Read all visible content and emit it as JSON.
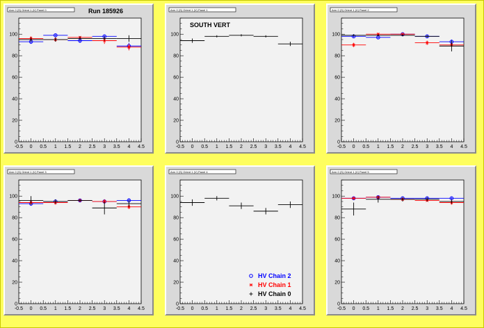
{
  "run_label": "Run 185926",
  "chart_data": [
    {
      "type": "scatter",
      "title": "Arm 0 (S) Orient 1 (V) Panel 0",
      "annotation": "Run 185926",
      "xlim": [
        -0.5,
        4.5
      ],
      "ylim": [
        0,
        115
      ],
      "x_ticks": [
        "-0.5",
        "0",
        "0.5",
        "1",
        "1.5",
        "2",
        "2.5",
        "3",
        "3.5",
        "4",
        "4.5"
      ],
      "y_ticks": [
        "0",
        "20",
        "40",
        "60",
        "80",
        "100"
      ],
      "series": [
        {
          "name": "HV Chain 2",
          "color": "#0000ff",
          "marker": "circle",
          "x": [
            0,
            1,
            2,
            3,
            4
          ],
          "values": [
            93,
            99,
            94,
            98,
            89
          ],
          "yerr": [
            2,
            1,
            2,
            1,
            3
          ]
        },
        {
          "name": "HV Chain 1",
          "color": "#ff0000",
          "marker": "star",
          "x": [
            0,
            1,
            2,
            3,
            4
          ],
          "values": [
            96,
            95,
            97,
            94,
            88
          ],
          "yerr": [
            2,
            2,
            1,
            3,
            3
          ]
        },
        {
          "name": "HV Chain 0",
          "color": "#000000",
          "marker": "plus",
          "x": [
            0,
            1,
            2,
            3,
            4
          ],
          "values": [
            95,
            95,
            96,
            96,
            96
          ],
          "yerr": [
            2,
            2,
            2,
            2,
            3
          ]
        }
      ]
    },
    {
      "type": "scatter",
      "title": "Arm 0 (S) Orient 1 (V) Panel 1",
      "annotation": "SOUTH VERT",
      "xlim": [
        -0.5,
        4.5
      ],
      "ylim": [
        0,
        115
      ],
      "x_ticks": [
        "-0.5",
        "0",
        "0.5",
        "1",
        "1.5",
        "2",
        "2.5",
        "3",
        "3.5",
        "4",
        "4.5"
      ],
      "y_ticks": [
        "0",
        "20",
        "40",
        "60",
        "80",
        "100"
      ],
      "series": [
        {
          "name": "HV Chain 0",
          "color": "#000000",
          "marker": "plus",
          "x": [
            0,
            1,
            2,
            3,
            4
          ],
          "values": [
            94,
            98,
            99,
            98,
            91
          ],
          "yerr": [
            2,
            1,
            1,
            1,
            2
          ]
        }
      ]
    },
    {
      "type": "scatter",
      "title": "Arm 0 (S) Orient 1 (V) Panel 2",
      "annotation": "",
      "xlim": [
        -0.5,
        4.5
      ],
      "ylim": [
        0,
        115
      ],
      "x_ticks": [
        "-0.5",
        "0",
        "0.5",
        "1",
        "1.5",
        "2",
        "2.5",
        "3",
        "3.5",
        "4",
        "4.5"
      ],
      "y_ticks": [
        "0",
        "20",
        "40",
        "60",
        "80",
        "100"
      ],
      "series": [
        {
          "name": "HV Chain 2",
          "color": "#0000ff",
          "marker": "circle",
          "x": [
            0,
            1,
            2,
            3,
            4
          ],
          "values": [
            98,
            97,
            100,
            98,
            93
          ],
          "yerr": [
            1,
            1,
            0.5,
            1,
            2
          ]
        },
        {
          "name": "HV Chain 1",
          "color": "#ff0000",
          "marker": "star",
          "x": [
            0,
            1,
            2,
            3,
            4
          ],
          "values": [
            90,
            100,
            100,
            92,
            90
          ],
          "yerr": [
            2,
            1,
            0.5,
            2,
            2
          ]
        },
        {
          "name": "HV Chain 0",
          "color": "#000000",
          "marker": "plus",
          "x": [
            0,
            1,
            2,
            3,
            4
          ],
          "values": [
            99,
            99,
            99,
            98,
            89
          ],
          "yerr": [
            1,
            1,
            1,
            1,
            5
          ]
        }
      ]
    },
    {
      "type": "scatter",
      "title": "Arm 0 (S) Orient 1 (V) Panel 3",
      "annotation": "",
      "xlim": [
        -0.5,
        4.5
      ],
      "ylim": [
        0,
        115
      ],
      "x_ticks": [
        "-0.5",
        "0",
        "0.5",
        "1",
        "1.5",
        "2",
        "2.5",
        "3",
        "3.5",
        "4",
        "4.5"
      ],
      "y_ticks": [
        "0",
        "20",
        "40",
        "60",
        "80",
        "100"
      ],
      "series": [
        {
          "name": "HV Chain 2",
          "color": "#0000ff",
          "marker": "circle",
          "x": [
            0,
            1,
            2,
            3,
            4
          ],
          "values": [
            93,
            95,
            96,
            95,
            96
          ],
          "yerr": [
            2,
            1,
            1,
            2,
            2
          ]
        },
        {
          "name": "HV Chain 1",
          "color": "#ff0000",
          "marker": "star",
          "x": [
            0,
            1,
            2,
            3,
            4
          ],
          "values": [
            94,
            94,
            96,
            95,
            90
          ],
          "yerr": [
            2,
            2,
            1,
            2,
            2
          ]
        },
        {
          "name": "HV Chain 0",
          "color": "#000000",
          "marker": "plus",
          "x": [
            0,
            1,
            2,
            3,
            4
          ],
          "values": [
            96,
            95,
            96,
            89,
            93
          ],
          "yerr": [
            4,
            2,
            1,
            6,
            3
          ]
        }
      ]
    },
    {
      "type": "scatter",
      "title": "Arm 0 (S) Orient 1 (V) Panel 4",
      "annotation": "",
      "xlim": [
        -0.5,
        4.5
      ],
      "ylim": [
        0,
        115
      ],
      "x_ticks": [
        "-0.5",
        "0",
        "0.5",
        "1",
        "1.5",
        "2",
        "2.5",
        "3",
        "3.5",
        "4",
        "4.5"
      ],
      "y_ticks": [
        "0",
        "20",
        "40",
        "60",
        "80",
        "100"
      ],
      "legend": [
        "HV Chain 2",
        "HV Chain 1",
        "HV Chain 0"
      ],
      "legend_colors": [
        "#0000ff",
        "#ff0000",
        "#000000"
      ],
      "legend_markers": [
        "circle",
        "star",
        "plus"
      ],
      "series": [
        {
          "name": "HV Chain 0",
          "color": "#000000",
          "marker": "plus",
          "x": [
            0,
            1,
            2,
            3,
            4
          ],
          "values": [
            94,
            98,
            91,
            86,
            92
          ],
          "yerr": [
            3,
            2,
            3,
            3,
            3
          ]
        }
      ]
    },
    {
      "type": "scatter",
      "title": "Arm 0 (S) Orient 1 (V) Panel 5",
      "annotation": "",
      "xlim": [
        -0.5,
        4.5
      ],
      "ylim": [
        0,
        115
      ],
      "x_ticks": [
        "-0.5",
        "0",
        "0.5",
        "1",
        "1.5",
        "2",
        "2.5",
        "3",
        "3.5",
        "4",
        "4.5"
      ],
      "y_ticks": [
        "0",
        "20",
        "40",
        "60",
        "80",
        "100"
      ],
      "series": [
        {
          "name": "HV Chain 2",
          "color": "#0000ff",
          "marker": "circle",
          "x": [
            0,
            1,
            2,
            3,
            4
          ],
          "values": [
            98,
            99,
            98,
            98,
            98
          ],
          "yerr": [
            1,
            1,
            1,
            1,
            1
          ]
        },
        {
          "name": "HV Chain 1",
          "color": "#ff0000",
          "marker": "star",
          "x": [
            0,
            1,
            2,
            3,
            4
          ],
          "values": [
            98,
            99,
            97,
            96,
            94
          ],
          "yerr": [
            1,
            1,
            1,
            1,
            2
          ]
        },
        {
          "name": "HV Chain 0",
          "color": "#000000",
          "marker": "plus",
          "x": [
            0,
            1,
            2,
            3,
            4
          ],
          "values": [
            88,
            97,
            97,
            97,
            95
          ],
          "yerr": [
            6,
            3,
            2,
            2,
            2
          ]
        }
      ]
    }
  ]
}
